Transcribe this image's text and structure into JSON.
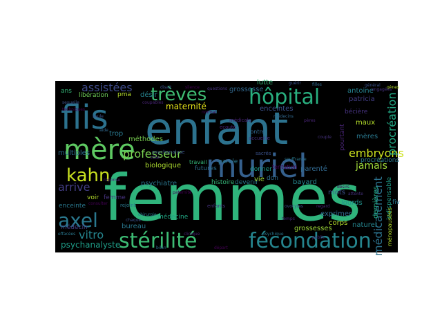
{
  "colors": {
    "page_background": "#ffffff",
    "cloud_background": "#000000",
    "palette": [
      "#440154",
      "#472c7a",
      "#3b518b",
      "#2c718e",
      "#21908d",
      "#27ad81",
      "#5cc863",
      "#aadc32",
      "#fde725"
    ]
  },
  "words": [
    {
      "text": "femmes",
      "color": "#2fb47c"
    },
    {
      "text": "enfant",
      "color": "#2c728e"
    },
    {
      "text": "muriel",
      "color": "#35608d"
    },
    {
      "text": "flis",
      "color": "#2c728e"
    },
    {
      "text": "mère",
      "color": "#5ec962"
    },
    {
      "text": "stérilité",
      "color": "#3dbc74"
    },
    {
      "text": "fécondation",
      "color": "#25858e"
    },
    {
      "text": "hôpital",
      "color": "#29af7f"
    },
    {
      "text": "trèves",
      "color": "#3fbc73"
    },
    {
      "text": "kahn",
      "color": "#c8e020"
    },
    {
      "text": "axel",
      "color": "#2a788e"
    },
    {
      "text": "assistées",
      "color": "#3e4a89"
    },
    {
      "text": "embryons",
      "color": "#cce11e"
    },
    {
      "text": "médicalement",
      "color": "#2c728e"
    },
    {
      "text": "procréation",
      "color": "#22a884"
    },
    {
      "text": "professeur",
      "color": "#7ad151"
    },
    {
      "text": "vitro",
      "color": "#25858e"
    },
    {
      "text": "psychanalyste",
      "color": "#1f9e89"
    },
    {
      "text": "jamais",
      "color": "#a0da39"
    },
    {
      "text": "arrive",
      "color": "#433e85"
    },
    {
      "text": "maternité",
      "color": "#e5e419"
    },
    {
      "text": "biologique",
      "color": "#addc30"
    },
    {
      "text": "psychiatre",
      "color": "#2a768e"
    },
    {
      "text": "grossesse",
      "color": "#31688e"
    },
    {
      "text": "enceintes",
      "color": "#3b528b"
    },
    {
      "text": "antoine",
      "color": "#26828e"
    },
    {
      "text": "patricia",
      "color": "#433e85"
    },
    {
      "text": "bécière",
      "color": "#46327e"
    },
    {
      "text": "lutte",
      "color": "#35b779"
    },
    {
      "text": "pourtant",
      "color": "#482475"
    },
    {
      "text": "maux",
      "color": "#b5de2b"
    },
    {
      "text": "mères",
      "color": "#2a788e"
    },
    {
      "text": "multiples",
      "color": "#2e6e8e"
    },
    {
      "text": "méthodes",
      "color": "#7ad151"
    },
    {
      "text": "trop",
      "color": "#2a788e"
    },
    {
      "text": "ans",
      "color": "#35b779"
    },
    {
      "text": "libération",
      "color": "#6ece58"
    },
    {
      "text": "désir",
      "color": "#26828e"
    },
    {
      "text": "enceinte",
      "color": "#2a788e"
    },
    {
      "text": "voir",
      "color": "#b5de2b"
    },
    {
      "text": "femme",
      "color": "#46327e"
    },
    {
      "text": "médecin",
      "color": "#433e85"
    },
    {
      "text": "bureau",
      "color": "#2a788e"
    },
    {
      "text": "médecine",
      "color": "#22a884"
    },
    {
      "text": "histoire",
      "color": "#35b779"
    },
    {
      "text": "devenir",
      "color": "#2a788e"
    },
    {
      "text": "vie",
      "color": "#a0da39"
    },
    {
      "text": "bayard",
      "color": "#25858e"
    },
    {
      "text": "mots",
      "color": "#3b528b"
    },
    {
      "text": "parole",
      "color": "#2a788e"
    },
    {
      "text": "parenté",
      "color": "#31688e"
    },
    {
      "text": "futures",
      "color": "#2e6e8e"
    },
    {
      "text": "donner",
      "color": "#1f9e89"
    },
    {
      "text": "lourds",
      "color": "#21918c"
    },
    {
      "text": "exprimer",
      "color": "#31688e"
    },
    {
      "text": "corps",
      "color": "#b5de2b"
    },
    {
      "text": "naturel",
      "color": "#25858e"
    },
    {
      "text": "grossesses",
      "color": "#9fda3a"
    },
    {
      "text": "dernières",
      "color": "#22a884"
    },
    {
      "text": "procréations",
      "color": "#2a788e"
    },
    {
      "text": "indispensable",
      "color": "#1f9e89"
    },
    {
      "text": "fiv",
      "color": "#2a788e"
    },
    {
      "text": "ménopausées",
      "color": "#b5de2b"
    },
    {
      "text": "tentation",
      "color": "#440154"
    },
    {
      "text": "contre",
      "color": "#31688e"
    },
    {
      "text": "psychanalyse",
      "color": "#3b528b"
    },
    {
      "text": "rôle",
      "color": "#46327e"
    },
    {
      "text": "travail",
      "color": "#35b779"
    },
    {
      "text": "accueille",
      "color": "#46327e"
    },
    {
      "text": "ecoute",
      "color": "#482475"
    },
    {
      "text": "rejoint",
      "color": "#2a788e"
    },
    {
      "text": "chirurgie",
      "color": "#2a788e"
    },
    {
      "text": "pma",
      "color": "#b5de2b"
    },
    {
      "text": "don",
      "color": "#2e6e8e"
    },
    {
      "text": "sacrés",
      "color": "#3b528b"
    },
    {
      "text": "coupables",
      "color": "#482475"
    },
    {
      "text": "disait",
      "color": "#3b528b"
    },
    {
      "text": "médicale",
      "color": "#482475"
    },
    {
      "text": "filles",
      "color": "#31688e"
    },
    {
      "text": "général",
      "color": "#3b528b"
    },
    {
      "text": "gènes",
      "color": "#b5de2b"
    },
    {
      "text": "engagées",
      "color": "#46327e"
    },
    {
      "text": "souffrance",
      "color": "#2a788e"
    },
    {
      "text": "enfants",
      "color": "#46327e"
    },
    {
      "text": "consulter",
      "color": "#440154"
    },
    {
      "text": "chaque",
      "color": "#3b528b"
    },
    {
      "text": "clinique",
      "color": "#482475"
    },
    {
      "text": "bilan",
      "color": "#2e6e8e"
    },
    {
      "text": "départ",
      "color": "#440154"
    },
    {
      "text": "public",
      "color": "#482475"
    },
    {
      "text": "aide",
      "color": "#31688e"
    },
    {
      "text": "techniques",
      "color": "#440154"
    },
    {
      "text": "sexuelle",
      "color": "#3b528b"
    },
    {
      "text": "couple",
      "color": "#46327e"
    },
    {
      "text": "pères",
      "color": "#482475"
    },
    {
      "text": "effacées",
      "color": "#2a788e"
    },
    {
      "text": "paternité",
      "color": "#440154"
    },
    {
      "text": "ovocytes",
      "color": "#3b528b"
    },
    {
      "text": "questions",
      "color": "#46327e"
    },
    {
      "text": "regard",
      "color": "#482475"
    },
    {
      "text": "médecins",
      "color": "#31688e"
    },
    {
      "text": "silence",
      "color": "#440154"
    },
    {
      "text": "guérir",
      "color": "#3b528b"
    },
    {
      "text": "temps",
      "color": "#482475"
    },
    {
      "text": "psychique",
      "color": "#2a788e"
    },
    {
      "text": "normal",
      "color": "#440154"
    },
    {
      "text": "attente",
      "color": "#46327e"
    },
    {
      "text": "seule",
      "color": "#3b528b"
    },
    {
      "text": "réponse",
      "color": "#482475"
    },
    {
      "text": "désirs",
      "color": "#440154"
    }
  ]
}
